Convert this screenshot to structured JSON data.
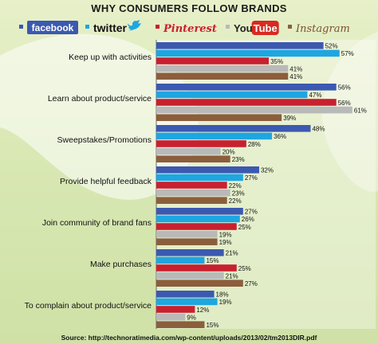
{
  "chart_data": {
    "type": "bar",
    "orientation": "horizontal",
    "title": "WHY CONSUMERS FOLLOW BRANDS",
    "categories": [
      "Keep up with activities",
      "Learn about product/service",
      "Sweepstakes/Promotions",
      "Provide helpful feedback",
      "Join community of brand fans",
      "Make purchases",
      "To complain about product/service"
    ],
    "series": [
      {
        "name": "facebook",
        "color": "#3b59b0",
        "values": [
          52,
          56,
          48,
          32,
          27,
          21,
          18
        ]
      },
      {
        "name": "twitter",
        "color": "#1ea6e0",
        "values": [
          57,
          47,
          36,
          27,
          26,
          15,
          19
        ]
      },
      {
        "name": "Pinterest",
        "color": "#c8202f",
        "values": [
          35,
          56,
          28,
          22,
          25,
          25,
          12
        ]
      },
      {
        "name": "YouTube",
        "color": "#b9b9b9",
        "values": [
          41,
          61,
          20,
          23,
          19,
          21,
          9
        ]
      },
      {
        "name": "Instagram",
        "color": "#8b5e3c",
        "values": [
          41,
          39,
          23,
          22,
          19,
          27,
          15
        ]
      }
    ],
    "value_suffix": "%",
    "xlim": [
      0,
      65
    ],
    "legend_position": "top",
    "grid": false,
    "source": "Source: http://technoratimedia.com/wp-content/uploads/2013/02/tm2013DIR.pdf"
  }
}
